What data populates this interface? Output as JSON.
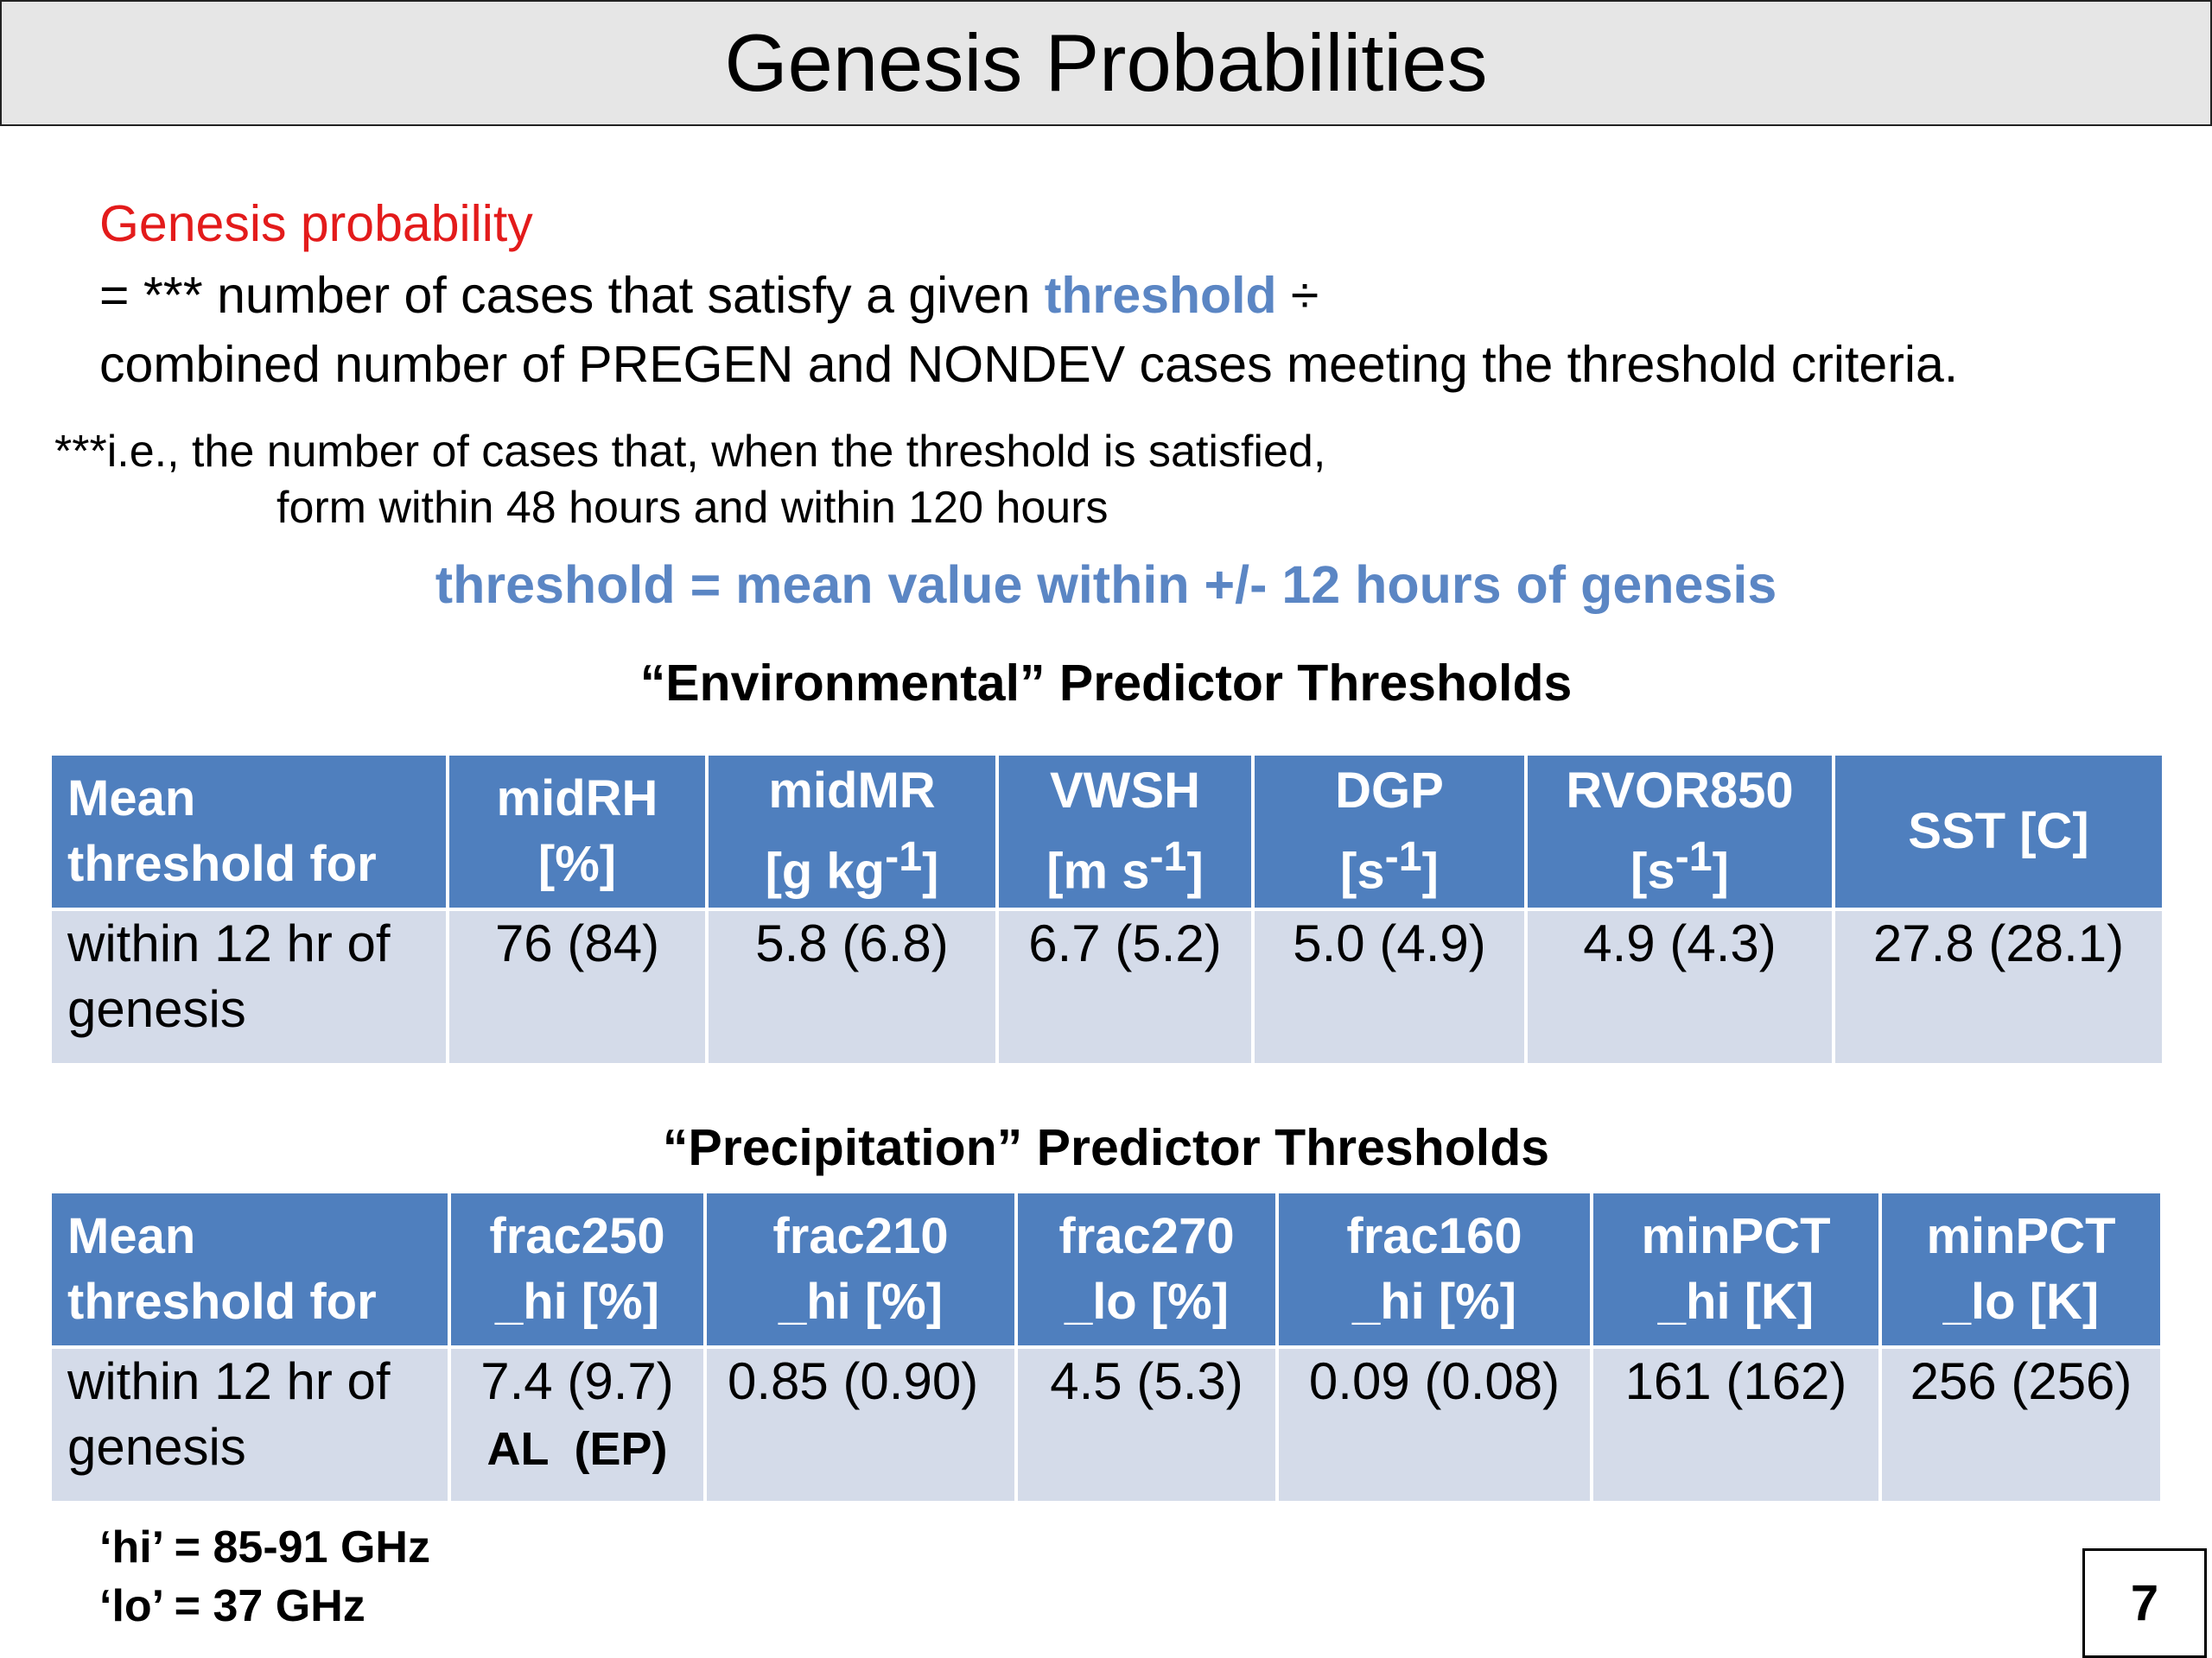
{
  "slide": {
    "title": "Genesis Probabilities",
    "page_number": "7"
  },
  "definition": {
    "heading": "Genesis probability",
    "line1_prefix": "= *** number of cases that satisfy a given ",
    "line1_keyword": "threshold",
    "line1_suffix": " ÷",
    "line2": "combined number of PREGEN and NONDEV cases meeting the threshold criteria."
  },
  "note": {
    "line1": "***i.e., the number of cases that, when the threshold is satisfied,",
    "line2": "form within 48 hours and within 120 hours"
  },
  "threshold_definition": "threshold = mean value within +/- 12 hours of genesis",
  "environmental": {
    "title": "“Environmental” Predictor Thresholds",
    "header_first": "Mean threshold for",
    "columns": [
      {
        "name": "midRH",
        "unit": "[%]"
      },
      {
        "name": "midMR",
        "unit_base": "[g kg",
        "unit_sup": "-1",
        "unit_end": "]"
      },
      {
        "name": "VWSH",
        "unit_base": "[m s",
        "unit_sup": "-1",
        "unit_end": "]"
      },
      {
        "name": "DGP",
        "unit_base": "[s",
        "unit_sup": "-1",
        "unit_end": "]"
      },
      {
        "name": "RVOR850",
        "unit_base": "[s",
        "unit_sup": "-1",
        "unit_end": "]"
      },
      {
        "name": "SST [C]"
      }
    ],
    "row_label": "within 12 hr of genesis",
    "values": [
      "76 (84)",
      "5.8 (6.8)",
      "6.7 (5.2)",
      "5.0 (4.9)",
      "4.9 (4.3)",
      "27.8 (28.1)"
    ]
  },
  "precipitation": {
    "title": "“Precipitation” Predictor Thresholds",
    "header_first": "Mean threshold for",
    "columns": [
      {
        "line1": "frac250",
        "line2": "_hi [%]"
      },
      {
        "line1": "frac210",
        "line2": "_hi [%]"
      },
      {
        "line1": "frac270",
        "line2": "_lo [%]"
      },
      {
        "line1": "frac160",
        "line2": "_hi [%]"
      },
      {
        "line1": "minPCT",
        "line2": "_hi [K]"
      },
      {
        "line1": "minPCT",
        "line2": "_lo [K]"
      }
    ],
    "row_label": "within 12 hr of genesis",
    "values": [
      "7.4 (9.7)",
      "0.85 (0.90)",
      "4.5 (5.3)",
      "0.09 (0.08)",
      "161 (162)",
      "256 (256)"
    ],
    "basin_note": "AL  (EP)"
  },
  "legend": {
    "hi": "‘hi’ = 85-91 GHz",
    "lo": "‘lo’ = 37 GHz"
  }
}
